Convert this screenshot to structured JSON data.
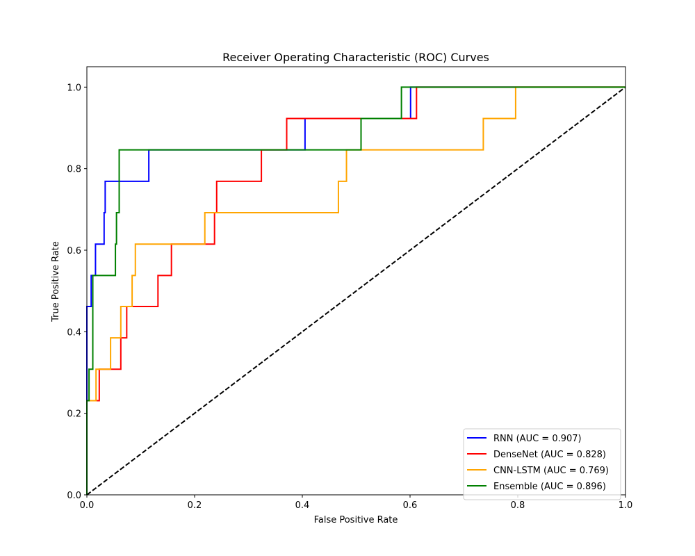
{
  "chart_data": {
    "type": "line",
    "title": "Receiver Operating Characteristic (ROC) Curves",
    "xlabel": "False Positive Rate",
    "ylabel": "True Positive Rate",
    "xlim": [
      0,
      1.0
    ],
    "ylim": [
      0,
      1.05
    ],
    "xticks": [
      0.0,
      0.2,
      0.4,
      0.6,
      0.8,
      1.0
    ],
    "xtick_labels": [
      "0.0",
      "0.2",
      "0.4",
      "0.6",
      "0.8",
      "1.0"
    ],
    "yticks": [
      0.0,
      0.2,
      0.4,
      0.6,
      0.8,
      1.0
    ],
    "ytick_labels": [
      "0.0",
      "0.2",
      "0.4",
      "0.6",
      "0.8",
      "1.0"
    ],
    "grid": false,
    "legend_position": "lower-right",
    "series": [
      {
        "name": "RNN (AUC = 0.907)",
        "color": "#0000ff",
        "x": [
          0,
          0,
          0.008,
          0.008,
          0.016,
          0.016,
          0.032,
          0.032,
          0.034,
          0.034,
          0.115,
          0.115,
          0.405,
          0.405,
          0.601,
          0.601,
          1.0
        ],
        "y": [
          0,
          0.462,
          0.462,
          0.538,
          0.538,
          0.615,
          0.615,
          0.692,
          0.692,
          0.769,
          0.769,
          0.846,
          0.846,
          0.923,
          0.923,
          1.0,
          1.0
        ]
      },
      {
        "name": "DenseNet (AUC = 0.828)",
        "color": "#ff0000",
        "x": [
          0,
          0,
          0.023,
          0.023,
          0.063,
          0.063,
          0.074,
          0.074,
          0.132,
          0.132,
          0.157,
          0.157,
          0.237,
          0.237,
          0.241,
          0.241,
          0.324,
          0.324,
          0.371,
          0.371,
          0.612,
          0.612,
          1.0
        ],
        "y": [
          0,
          0.231,
          0.231,
          0.308,
          0.308,
          0.385,
          0.385,
          0.462,
          0.462,
          0.538,
          0.538,
          0.615,
          0.615,
          0.692,
          0.692,
          0.769,
          0.769,
          0.846,
          0.846,
          0.923,
          0.923,
          1.0,
          1.0
        ]
      },
      {
        "name": "CNN-LSTM (AUC = 0.769)",
        "color": "#ffa500",
        "x": [
          0,
          0,
          0.017,
          0.017,
          0.044,
          0.044,
          0.063,
          0.063,
          0.084,
          0.084,
          0.09,
          0.09,
          0.219,
          0.219,
          0.467,
          0.467,
          0.482,
          0.482,
          0.736,
          0.736,
          0.796,
          0.796,
          1.0
        ],
        "y": [
          0,
          0.231,
          0.231,
          0.308,
          0.308,
          0.385,
          0.385,
          0.462,
          0.462,
          0.538,
          0.538,
          0.615,
          0.615,
          0.692,
          0.692,
          0.769,
          0.769,
          0.846,
          0.846,
          0.923,
          0.923,
          1.0,
          1.0
        ]
      },
      {
        "name": "Ensemble (AUC = 0.896)",
        "color": "#008000",
        "x": [
          0,
          0,
          0.004,
          0.004,
          0.011,
          0.011,
          0.053,
          0.053,
          0.055,
          0.055,
          0.06,
          0.06,
          0.509,
          0.509,
          0.584,
          0.584,
          1.0
        ],
        "y": [
          0,
          0.231,
          0.231,
          0.308,
          0.308,
          0.538,
          0.538,
          0.615,
          0.615,
          0.692,
          0.692,
          0.846,
          0.846,
          0.923,
          0.923,
          1.0,
          1.0
        ]
      }
    ],
    "reference_line": {
      "style": "dashed",
      "color": "#000000",
      "x": [
        0,
        1.0
      ],
      "y": [
        0,
        1.0
      ]
    }
  }
}
